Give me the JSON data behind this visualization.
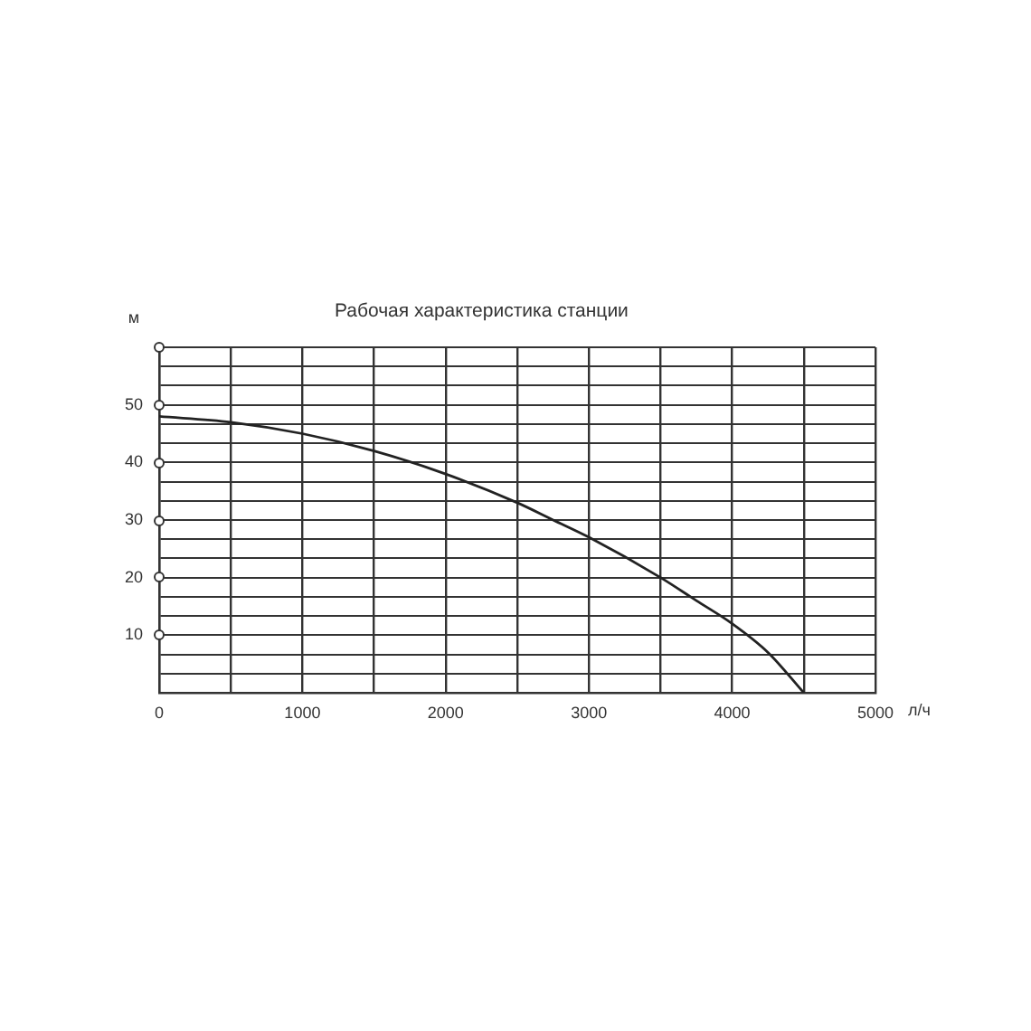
{
  "chart_data": {
    "type": "line",
    "title": "Рабочая характеристика станции",
    "xlabel": "л/ч",
    "ylabel": "м",
    "x": [
      0,
      500,
      1000,
      1500,
      2000,
      2500,
      2750,
      3000,
      3500,
      3750,
      4000,
      4250,
      4500
    ],
    "values": [
      48,
      47,
      45,
      42,
      38,
      33,
      30,
      27,
      20,
      16,
      12,
      7,
      0
    ],
    "color": "#222222",
    "xlim": [
      0,
      5000
    ],
    "ylim": [
      0,
      60
    ],
    "xticks": [
      0,
      {
        "value": 500,
        "label": null
      },
      1000,
      {
        "value": 1500,
        "label": null
      },
      2000,
      {
        "value": 2500,
        "label": null
      },
      3000,
      {
        "value": 3500,
        "label": null
      },
      4000,
      {
        "value": 4500,
        "label": null
      },
      5000
    ],
    "yticks": [
      {
        "value": 0,
        "label": null
      },
      {
        "value": 3.33,
        "label": null
      },
      {
        "value": 6.67,
        "label": null
      },
      10,
      {
        "value": 13.33,
        "label": null
      },
      {
        "value": 16.67,
        "label": null
      },
      20,
      {
        "value": 23.33,
        "label": null
      },
      {
        "value": 26.67,
        "label": null
      },
      30,
      {
        "value": 33.33,
        "label": null
      },
      {
        "value": 36.67,
        "label": null
      },
      40,
      {
        "value": 43.33,
        "label": null
      },
      {
        "value": 46.67,
        "label": null
      },
      50,
      {
        "value": 53.33,
        "label": null
      },
      {
        "value": 56.67,
        "label": null
      },
      {
        "value": 60,
        "label": null
      }
    ],
    "grid": true
  }
}
